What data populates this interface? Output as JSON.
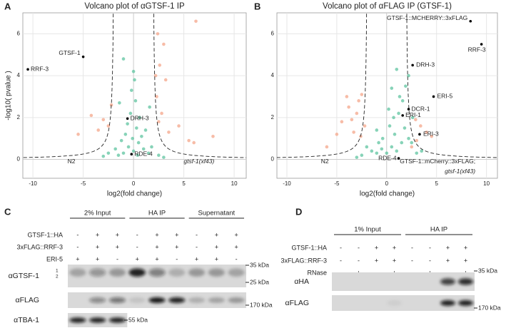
{
  "panels": [
    "A",
    "B",
    "C",
    "D"
  ],
  "chart_data": [
    {
      "type": "scatter",
      "title": "Volcano plot of αGTSF-1 IP",
      "x_label": "log2(fold change)",
      "y_label": "-log10( pvalue )",
      "xlim": [
        -11,
        11.2
      ],
      "ylim": [
        -0.9,
        7
      ],
      "xticks": [
        -10,
        -5,
        0,
        5,
        10
      ],
      "yticks": [
        0,
        2,
        4,
        6
      ],
      "grid": true,
      "annotations": [
        "N2",
        "gtsf-1(xf43)"
      ],
      "series": [
        {
          "color": "#5fc4a0",
          "x": [
            -1,
            -0.5,
            0,
            0.5,
            1,
            -1.5,
            1.5,
            -0.8,
            0.3,
            0.8,
            -0.3,
            0.2,
            -0.2,
            0.6,
            -1.2,
            1.2,
            -0.6,
            0.1,
            0.4,
            -0.1,
            1.8,
            -1.8,
            2.5,
            -2.5,
            3,
            -3,
            0,
            -1,
            1.6,
            -1.4
          ],
          "y": [
            0.3,
            0.6,
            0.4,
            0.8,
            0.5,
            0.2,
            0.3,
            1.2,
            1.5,
            1.1,
            2.2,
            2.8,
            3.3,
            2,
            0.9,
            1.4,
            1.7,
            3.8,
            0.2,
            1,
            0.6,
            0.5,
            0.2,
            0.3,
            0.1,
            0.15,
            4.2,
            4.8,
            2.5,
            2.7
          ]
        },
        {
          "color": "#f4a58a",
          "x": [
            2.3,
            2.6,
            2.4,
            3,
            2.8,
            3.5,
            4.5,
            6,
            6.2,
            7.9,
            -2.5,
            -3.5,
            -4.2,
            -3,
            -5.5,
            -2.2,
            2.2,
            3.2,
            5.5,
            2.5
          ],
          "y": [
            3,
            4.5,
            6,
            5.5,
            2.2,
            1.3,
            1.6,
            0.8,
            6.6,
            1.1,
            1.6,
            1.4,
            2.1,
            1.9,
            1.2,
            2.6,
            4,
            3.8,
            0.9,
            1.8
          ]
        },
        {
          "color": "#000000",
          "x": [
            -10.5,
            -5,
            -0.6,
            -0.2
          ],
          "y": [
            4.3,
            4.9,
            1.95,
            0.25
          ],
          "labels": [
            "RRF-3",
            "GTSF-1",
            "DRH-3",
            "RDE-4"
          ]
        }
      ]
    },
    {
      "type": "scatter",
      "title": "Volcano plot of αFLAG IP (GTSF-1)",
      "x_label": "log2(fold change)",
      "xlim": [
        -11,
        11.1
      ],
      "ylim": [
        -0.9,
        7
      ],
      "xticks": [
        -10,
        -5,
        0,
        5,
        10
      ],
      "yticks": [
        0,
        2,
        4,
        6
      ],
      "grid": true,
      "annotations": [
        "N2",
        "GTSF-1::mCherry::3xFLAG;",
        "gtsf-1(xf43)"
      ],
      "series": [
        {
          "color": "#5fc4a0",
          "x": [
            0,
            0.5,
            1,
            -0.5,
            -1,
            1.5,
            -1.5,
            0.8,
            0.3,
            1.2,
            1.6,
            1.9,
            2.2,
            1.3,
            0.7,
            -0.4,
            -1,
            1.8,
            2.5,
            3,
            -2.5,
            -3,
            -2,
            2.2,
            1,
            0.5,
            -0.8,
            0.2,
            2.6,
            3.5
          ],
          "y": [
            0.3,
            0.6,
            0.4,
            0.5,
            0.3,
            0.8,
            0.4,
            1.2,
            1.6,
            2.2,
            2.8,
            3.5,
            4,
            3,
            2,
            1,
            1.4,
            1.5,
            0.8,
            0.3,
            0.2,
            0.1,
            0.6,
            1,
            4.3,
            3.4,
            0.8,
            2.4,
            2,
            0.4
          ]
        },
        {
          "color": "#f4a58a",
          "x": [
            -2.5,
            -3,
            -2.8,
            -3.5,
            -4.5,
            -4,
            -2.2,
            -3.3,
            -5,
            -6,
            -3.8,
            -2.6,
            3,
            4,
            3.4,
            2.5,
            4.5,
            2.9
          ],
          "y": [
            3.1,
            2.2,
            2.8,
            1.9,
            1.8,
            3,
            1.6,
            1.3,
            1.2,
            0.6,
            2.5,
            1.1,
            0.9,
            1.3,
            1.6,
            0.6,
            1.1,
            1.9
          ]
        },
        {
          "color": "#000000",
          "x": [
            8.4,
            9.5,
            2.6,
            4.7,
            2.2,
            1.6,
            3.3,
            1.2
          ],
          "y": [
            6.6,
            5.5,
            4.5,
            3,
            2.4,
            2.1,
            1.2,
            0.05
          ],
          "labels": [
            "GTSF-1::MCHERRY::3xFLAG",
            "RRF-3",
            "DRH-3",
            "ERI-5",
            "DCR-1",
            "ERI-1",
            "ERI-3",
            "RDE-4"
          ]
        }
      ]
    }
  ],
  "blots": [
    {
      "groups": [
        "2% Input",
        "HA IP",
        "Supernatant"
      ],
      "conditions": [
        {
          "label": "GTSF-1::HA",
          "signs": [
            "-",
            "+",
            "+",
            "-",
            "+",
            "+",
            "-",
            "+",
            "+"
          ]
        },
        {
          "label": "3xFLAG::RRF-3",
          "signs": [
            "-",
            "+",
            "+",
            "-",
            "+",
            "+",
            "-",
            "+",
            "+"
          ]
        },
        {
          "label": "ERI-5",
          "signs": [
            "+",
            "+",
            "-",
            "+",
            "+",
            "-",
            "+",
            "+",
            "-"
          ]
        }
      ],
      "antibodies": [
        "αGTSF-1",
        "αFLAG",
        "αTBA-1"
      ],
      "isoforms": [
        "1",
        "2"
      ],
      "markers": [
        "35 kDa",
        "25 kDa",
        "170 kDa",
        "55 kDa"
      ]
    },
    {
      "groups": [
        "1% Input",
        "HA IP"
      ],
      "conditions": [
        {
          "label": "GTSF-1::HA",
          "signs": [
            "-",
            "-",
            "+",
            "+",
            "-",
            "-",
            "+",
            "+"
          ]
        },
        {
          "label": "3xFLAG::RRF-3",
          "signs": [
            "-",
            "-",
            "+",
            "+",
            "-",
            "-",
            "+",
            "+"
          ]
        },
        {
          "label": "RNase",
          "signs": [
            "-",
            "+",
            "-",
            "+",
            "-",
            "+",
            "-",
            "+"
          ]
        }
      ],
      "antibodies": [
        "αHA",
        "αFLAG"
      ],
      "markers": [
        "35 kDa",
        "170 kDa"
      ]
    }
  ]
}
